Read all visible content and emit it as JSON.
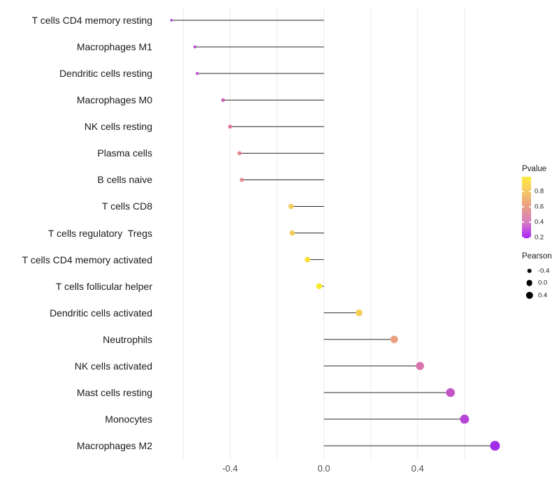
{
  "chart_data": {
    "type": "scatter",
    "variant": "lollipop",
    "title": "",
    "xlabel": "",
    "ylabel": "",
    "x_tick_labels": [
      "-0.4",
      "0.0",
      "0.4"
    ],
    "x_ticks": [
      -0.4,
      0.0,
      0.4
    ],
    "xlim": [
      -0.72,
      0.8
    ],
    "grid_x": [
      -0.6,
      -0.4,
      -0.2,
      0.0,
      0.2,
      0.4,
      0.6
    ],
    "baseline_x": 0.0,
    "grid": true,
    "legend_position": "right",
    "categories": [
      "T cells CD4 memory resting",
      "Macrophages M1",
      "Dendritic cells resting",
      "Macrophages M0",
      "NK cells resting",
      "Plasma cells",
      "B cells naive",
      "T cells CD8",
      "T cells regulatory  Tregs",
      "T cells CD4 memory activated",
      "T cells follicular helper",
      "Dendritic cells activated",
      "Neutrophils",
      "NK cells activated",
      "Mast cells resting",
      "Monocytes",
      "Macrophages M2"
    ],
    "series": [
      {
        "name": "Pearson",
        "values": [
          -0.65,
          -0.55,
          -0.54,
          -0.43,
          -0.4,
          -0.36,
          -0.35,
          -0.14,
          -0.135,
          -0.07,
          -0.02,
          0.15,
          0.3,
          0.41,
          0.54,
          0.6,
          0.73
        ]
      }
    ],
    "point_colors": [
      "#9C3BD4",
      "#B451CE",
      "#B855C9",
      "#CB63B4",
      "#DC709D",
      "#E2838F",
      "#E3868B",
      "#F2CB57",
      "#F2CB57",
      "#F8DF38",
      "#FAE82B",
      "#F4CD53",
      "#E9A07F",
      "#D974AD",
      "#C354C8",
      "#B645D7",
      "#A32CEB"
    ]
  },
  "legend": {
    "pvalue": {
      "title": "Pvalue",
      "tick_labels": [
        "0.8",
        "0.6",
        "0.4",
        "0.2"
      ],
      "gradient_top_color": "#FBEA3E",
      "gradient_bottom_color": "#A524F2"
    },
    "pearson": {
      "title": "Pearson",
      "items": [
        {
          "label": "-0.4",
          "value": -0.4
        },
        {
          "label": "0.0",
          "value": 0.0
        },
        {
          "label": "0.4",
          "value": 0.4
        }
      ]
    }
  },
  "colors": {
    "background": "#ffffff",
    "segment": "#262626",
    "gridline": "#ebebeb",
    "axis_text": "#4d4d4d",
    "label_text": "#1a1a1a"
  }
}
